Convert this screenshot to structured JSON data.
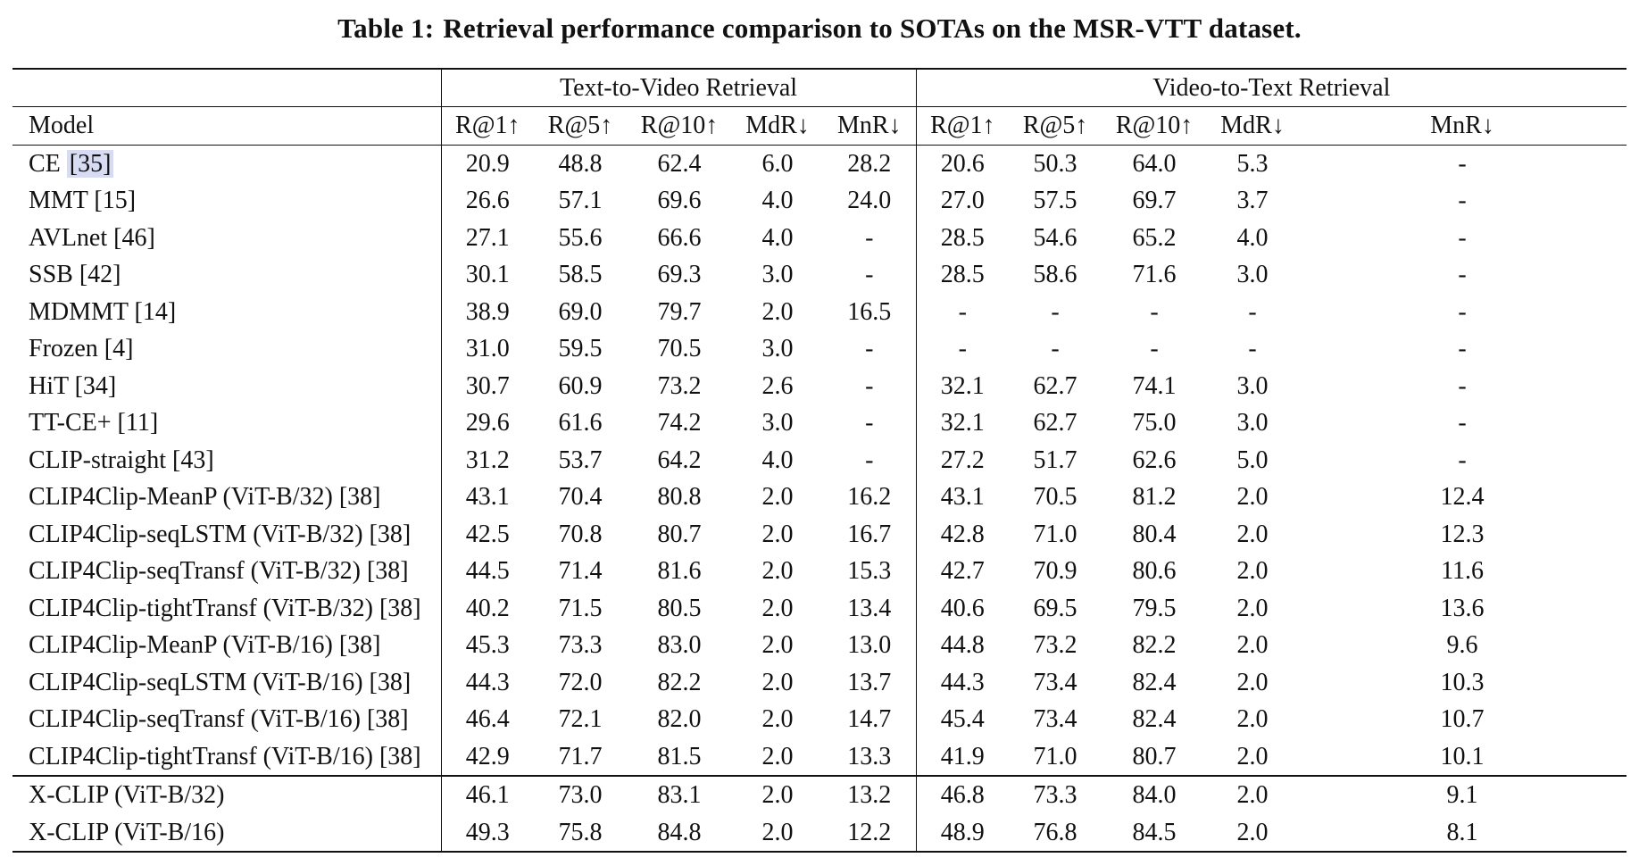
{
  "caption": {
    "label": "Table 1:",
    "text": "Retrieval performance comparison to SOTAs on the MSR-VTT dataset."
  },
  "header": {
    "groups": [
      "Text-to-Video Retrieval",
      "Video-to-Text Retrieval"
    ],
    "model_label": "Model",
    "metrics": [
      "R@1↑",
      "R@5↑",
      "R@10↑",
      "MdR↓",
      "MnR↓"
    ]
  },
  "rows": [
    {
      "model": "CE",
      "cite": "[35]",
      "cite_highlight": true,
      "t2v": [
        "20.9",
        "48.8",
        "62.4",
        "6.0",
        "28.2"
      ],
      "v2t": [
        "20.6",
        "50.3",
        "64.0",
        "5.3",
        "-"
      ],
      "bold": []
    },
    {
      "model": "MMT",
      "cite": "[15]",
      "t2v": [
        "26.6",
        "57.1",
        "69.6",
        "4.0",
        "24.0"
      ],
      "v2t": [
        "27.0",
        "57.5",
        "69.7",
        "3.7",
        "-"
      ],
      "bold": []
    },
    {
      "model": "AVLnet",
      "cite": "[46]",
      "t2v": [
        "27.1",
        "55.6",
        "66.6",
        "4.0",
        "-"
      ],
      "v2t": [
        "28.5",
        "54.6",
        "65.2",
        "4.0",
        "-"
      ],
      "bold": []
    },
    {
      "model": "SSB",
      "cite": "[42]",
      "t2v": [
        "30.1",
        "58.5",
        "69.3",
        "3.0",
        "-"
      ],
      "v2t": [
        "28.5",
        "58.6",
        "71.6",
        "3.0",
        "-"
      ],
      "bold": []
    },
    {
      "model": "MDMMT",
      "cite": "[14]",
      "t2v": [
        "38.9",
        "69.0",
        "79.7",
        "2.0",
        "16.5"
      ],
      "v2t": [
        "-",
        "-",
        "-",
        "-",
        "-"
      ],
      "bold": [
        3
      ]
    },
    {
      "model": "Frozen",
      "cite": "[4]",
      "t2v": [
        "31.0",
        "59.5",
        "70.5",
        "3.0",
        "-"
      ],
      "v2t": [
        "-",
        "-",
        "-",
        "-",
        "-"
      ],
      "bold": []
    },
    {
      "model": "HiT",
      "cite": "[34]",
      "t2v": [
        "30.7",
        "60.9",
        "73.2",
        "2.6",
        "-"
      ],
      "v2t": [
        "32.1",
        "62.7",
        "74.1",
        "3.0",
        "-"
      ],
      "bold": []
    },
    {
      "model": "TT-CE+",
      "cite": "[11]",
      "t2v": [
        "29.6",
        "61.6",
        "74.2",
        "3.0",
        "-"
      ],
      "v2t": [
        "32.1",
        "62.7",
        "75.0",
        "3.0",
        "-"
      ],
      "bold": []
    },
    {
      "model": "CLIP-straight",
      "cite": "[43]",
      "t2v": [
        "31.2",
        "53.7",
        "64.2",
        "4.0",
        "-"
      ],
      "v2t": [
        "27.2",
        "51.7",
        "62.6",
        "5.0",
        "-"
      ],
      "bold": []
    },
    {
      "model": "CLIP4Clip-MeanP (ViT-B/32)",
      "cite": "[38]",
      "t2v": [
        "43.1",
        "70.4",
        "80.8",
        "2.0",
        "16.2"
      ],
      "v2t": [
        "43.1",
        "70.5",
        "81.2",
        "2.0",
        "12.4"
      ],
      "bold": [
        3,
        8
      ]
    },
    {
      "model": "CLIP4Clip-seqLSTM (ViT-B/32)",
      "cite": "[38]",
      "t2v": [
        "42.5",
        "70.8",
        "80.7",
        "2.0",
        "16.7"
      ],
      "v2t": [
        "42.8",
        "71.0",
        "80.4",
        "2.0",
        "12.3"
      ],
      "bold": [
        3,
        8
      ]
    },
    {
      "model": "CLIP4Clip-seqTransf (ViT-B/32)",
      "cite": "[38]",
      "t2v": [
        "44.5",
        "71.4",
        "81.6",
        "2.0",
        "15.3"
      ],
      "v2t": [
        "42.7",
        "70.9",
        "80.6",
        "2.0",
        "11.6"
      ],
      "bold": [
        3,
        8
      ]
    },
    {
      "model": "CLIP4Clip-tightTransf (ViT-B/32)",
      "cite": "[38]",
      "t2v": [
        "40.2",
        "71.5",
        "80.5",
        "2.0",
        "13.4"
      ],
      "v2t": [
        "40.6",
        "69.5",
        "79.5",
        "2.0",
        "13.6"
      ],
      "bold": [
        3,
        8
      ]
    },
    {
      "model": "CLIP4Clip-MeanP (ViT-B/16)",
      "cite": "[38]",
      "t2v": [
        "45.3",
        "73.3",
        "83.0",
        "2.0",
        "13.0"
      ],
      "v2t": [
        "44.8",
        "73.2",
        "82.2",
        "2.0",
        "9.6"
      ],
      "bold": [
        3,
        8
      ]
    },
    {
      "model": "CLIP4Clip-seqLSTM (ViT-B/16)",
      "cite": "[38]",
      "t2v": [
        "44.3",
        "72.0",
        "82.2",
        "2.0",
        "13.7"
      ],
      "v2t": [
        "44.3",
        "73.4",
        "82.4",
        "2.0",
        "10.3"
      ],
      "bold": [
        3,
        8
      ]
    },
    {
      "model": "CLIP4Clip-seqTransf (ViT-B/16)",
      "cite": "[38]",
      "t2v": [
        "46.4",
        "72.1",
        "82.0",
        "2.0",
        "14.7"
      ],
      "v2t": [
        "45.4",
        "73.4",
        "82.4",
        "2.0",
        "10.7"
      ],
      "bold": [
        3,
        8
      ]
    },
    {
      "model": "CLIP4Clip-tightTransf (ViT-B/16)",
      "cite": "[38]",
      "t2v": [
        "42.9",
        "71.7",
        "81.5",
        "2.0",
        "13.3"
      ],
      "v2t": [
        "41.9",
        "71.0",
        "80.7",
        "2.0",
        "10.1"
      ],
      "bold": [
        3,
        8
      ]
    },
    {
      "model": "X-CLIP (ViT-B/32)",
      "cite": "",
      "group_start": true,
      "t2v": [
        "46.1",
        "73.0",
        "83.1",
        "2.0",
        "13.2"
      ],
      "v2t": [
        "46.8",
        "73.3",
        "84.0",
        "2.0",
        "9.1"
      ],
      "bold": [
        3,
        8
      ]
    },
    {
      "model": "X-CLIP (ViT-B/16)",
      "cite": "",
      "t2v": [
        "49.3",
        "75.8",
        "84.8",
        "2.0",
        "12.2"
      ],
      "v2t": [
        "48.9",
        "76.8",
        "84.5",
        "2.0",
        "8.1"
      ],
      "bold": [
        0,
        1,
        2,
        3,
        4,
        5,
        6,
        7,
        8,
        9
      ]
    }
  ]
}
